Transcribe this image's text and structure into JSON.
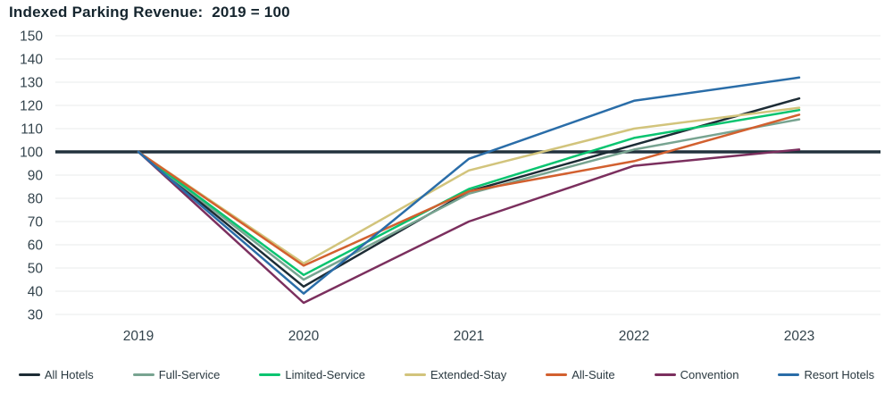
{
  "title": "Indexed Parking Revenue:  2019 = 100",
  "chart_data": {
    "type": "line",
    "title": "Indexed Parking Revenue: 2019 = 100",
    "categories": [
      "2019",
      "2020",
      "2021",
      "2022",
      "2023"
    ],
    "series": [
      {
        "name": "All Hotels",
        "color": "#1d2c35",
        "values": [
          100,
          42,
          83,
          103,
          123
        ]
      },
      {
        "name": "Full-Service",
        "color": "#78a491",
        "values": [
          100,
          45,
          82,
          101,
          114
        ]
      },
      {
        "name": "Limited-Service",
        "color": "#0ac470",
        "values": [
          100,
          47,
          84,
          106,
          118
        ]
      },
      {
        "name": "Extended-Stay",
        "color": "#d2c47c",
        "values": [
          100,
          52,
          92,
          110,
          119
        ]
      },
      {
        "name": "All-Suite",
        "color": "#d2602f",
        "values": [
          100,
          51,
          83,
          96,
          116
        ]
      },
      {
        "name": "Convention",
        "color": "#7b2f5e",
        "values": [
          100,
          35,
          70,
          94,
          101
        ]
      },
      {
        "name": "Resort Hotels",
        "color": "#2a6da8",
        "values": [
          100,
          39,
          97,
          122,
          132
        ]
      }
    ],
    "baseline": 100,
    "baseline_color": "#22323d",
    "yticks": [
      30,
      40,
      50,
      60,
      70,
      80,
      90,
      100,
      110,
      120,
      130,
      140,
      150
    ],
    "ylim": [
      30,
      150
    ],
    "grid": "horizontal",
    "gridline_color": "#e9ebeb",
    "tick_label_color": "#33434c",
    "legend_position": "bottom"
  }
}
